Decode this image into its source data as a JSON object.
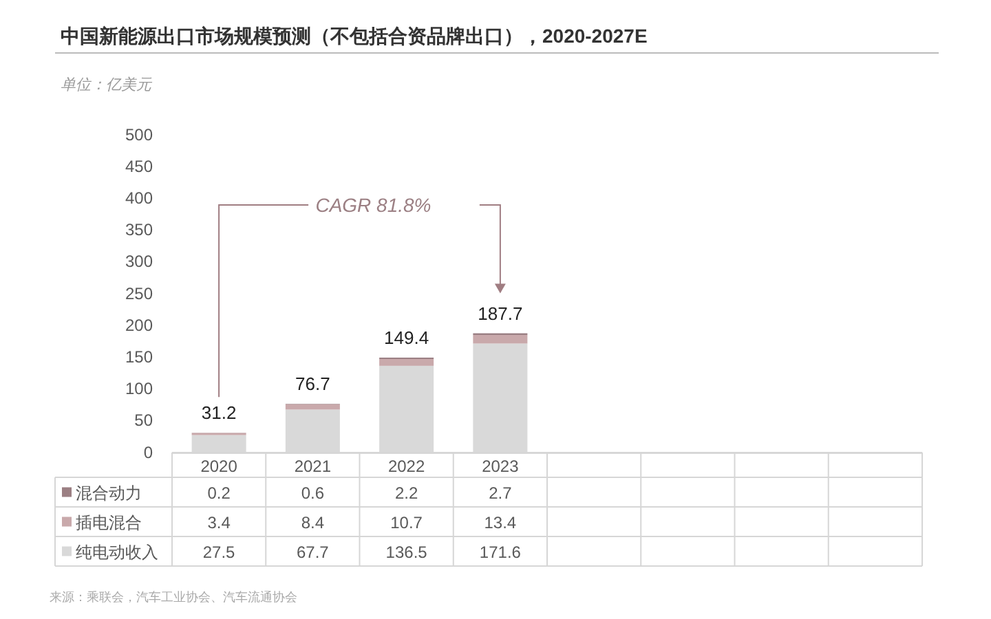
{
  "chart_data": {
    "type": "bar",
    "title": "中国新能源出口市场规模预测（不包括合资品牌出口），2020-2027E",
    "subtitle": "单位：亿美元",
    "categories": [
      "2020",
      "2021",
      "2022",
      "2023",
      null,
      null,
      null,
      null
    ],
    "stacked": true,
    "series": [
      {
        "name": "纯电动收入",
        "color": "#d9d9d9",
        "values": [
          27.5,
          67.7,
          136.5,
          171.6,
          null,
          null,
          null,
          null
        ]
      },
      {
        "name": "插电混合",
        "color": "#c9a9ab",
        "values": [
          3.4,
          8.4,
          10.7,
          13.4,
          null,
          null,
          null,
          null
        ]
      },
      {
        "name": "混合动力",
        "color": "#9b7f83",
        "values": [
          0.2,
          0.6,
          2.2,
          2.7,
          null,
          null,
          null,
          null
        ]
      }
    ],
    "totals": [
      "31.2",
      "76.7",
      "149.4",
      "187.7",
      null,
      null,
      null,
      null
    ],
    "ylim": [
      0,
      500
    ],
    "yticks": [
      0,
      50,
      100,
      150,
      200,
      250,
      300,
      350,
      400,
      450,
      500
    ],
    "data_labels": true,
    "legend": "bottom",
    "grid": false,
    "annotations": [
      "CAGR 81.8%",
      "来源：乘联会，汽车工业协会、汽车流通协会"
    ]
  }
}
